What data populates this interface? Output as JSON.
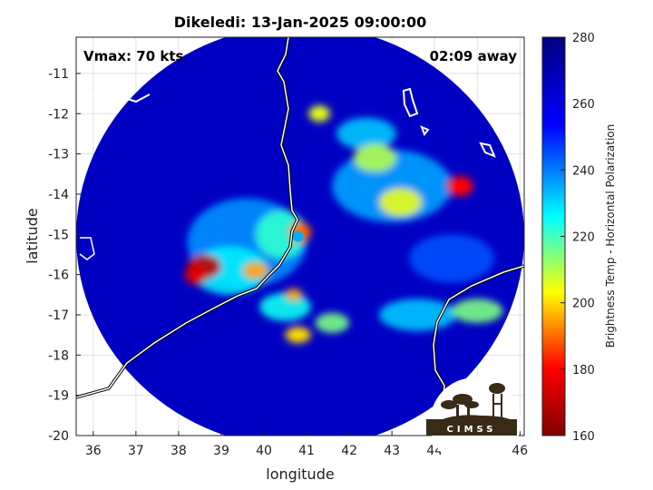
{
  "title": "Dikeledi: 13-Jan-2025 09:00:00",
  "annotations": {
    "vmax": "Vmax: 70 kts",
    "time_away": "02:09 away"
  },
  "logo": {
    "text": "CIMSS"
  },
  "chart_data": {
    "type": "heatmap",
    "title": "Dikeledi: 13-Jan-2025 09:00:00",
    "xlabel": "longitude",
    "ylabel": "latitude",
    "xlim": [
      35.6,
      46.1
    ],
    "ylim": [
      -20.0,
      -10.1
    ],
    "xticks": [
      36,
      37,
      38,
      39,
      40,
      41,
      42,
      43,
      44,
      45,
      46
    ],
    "yticks": [
      -11,
      -12,
      -13,
      -14,
      -15,
      -16,
      -17,
      -18,
      -19,
      -20
    ],
    "grid": true,
    "colorbar": {
      "label": "Brightness Temp - Horizontal Polarization",
      "range": [
        160,
        280
      ],
      "ticks": [
        160,
        180,
        200,
        220,
        240,
        260,
        280
      ],
      "colors": [
        "#800000",
        "#ff0000",
        "#ffff00",
        "#00ffff",
        "#0000ff",
        "#000080"
      ]
    },
    "swath": {
      "center_lon": 40.85,
      "center_lat": -15.05,
      "radius_deg": 5.25,
      "background_temp": 266
    },
    "storm_center": {
      "lon": 40.8,
      "lat": -15.05
    },
    "features": [
      {
        "lon": 39.6,
        "lat": -15.2,
        "rx": 1.4,
        "ry": 1.1,
        "temp": 238
      },
      {
        "lon": 39.2,
        "lat": -15.9,
        "rx": 0.9,
        "ry": 0.6,
        "temp": 228
      },
      {
        "lon": 40.4,
        "lat": -15.0,
        "rx": 0.6,
        "ry": 0.6,
        "temp": 222
      },
      {
        "lon": 40.85,
        "lat": -14.95,
        "rx": 0.25,
        "ry": 0.25,
        "temp": 190
      },
      {
        "lon": 38.6,
        "lat": -15.8,
        "rx": 0.4,
        "ry": 0.3,
        "temp": 170
      },
      {
        "lon": 38.4,
        "lat": -16.0,
        "rx": 0.25,
        "ry": 0.25,
        "temp": 175
      },
      {
        "lon": 39.8,
        "lat": -15.9,
        "rx": 0.3,
        "ry": 0.2,
        "temp": 195
      },
      {
        "lon": 43.0,
        "lat": -13.8,
        "rx": 1.4,
        "ry": 0.9,
        "temp": 236
      },
      {
        "lon": 42.4,
        "lat": -12.5,
        "rx": 0.7,
        "ry": 0.4,
        "temp": 232
      },
      {
        "lon": 42.6,
        "lat": -13.1,
        "rx": 0.5,
        "ry": 0.35,
        "temp": 210
      },
      {
        "lon": 43.2,
        "lat": -14.2,
        "rx": 0.5,
        "ry": 0.35,
        "temp": 205
      },
      {
        "lon": 44.6,
        "lat": -13.8,
        "rx": 0.3,
        "ry": 0.25,
        "temp": 180
      },
      {
        "lon": 41.3,
        "lat": -12.0,
        "rx": 0.25,
        "ry": 0.2,
        "temp": 205
      },
      {
        "lon": 44.4,
        "lat": -15.6,
        "rx": 1.0,
        "ry": 0.6,
        "temp": 245
      },
      {
        "lon": 43.6,
        "lat": -17.0,
        "rx": 0.9,
        "ry": 0.4,
        "temp": 232
      },
      {
        "lon": 45.0,
        "lat": -16.9,
        "rx": 0.6,
        "ry": 0.3,
        "temp": 215
      },
      {
        "lon": 40.5,
        "lat": -16.8,
        "rx": 0.6,
        "ry": 0.35,
        "temp": 225
      },
      {
        "lon": 40.8,
        "lat": -17.5,
        "rx": 0.3,
        "ry": 0.2,
        "temp": 200
      },
      {
        "lon": 41.6,
        "lat": -17.2,
        "rx": 0.4,
        "ry": 0.25,
        "temp": 215
      },
      {
        "lon": 40.7,
        "lat": -16.5,
        "rx": 0.2,
        "ry": 0.15,
        "temp": 195
      }
    ]
  }
}
